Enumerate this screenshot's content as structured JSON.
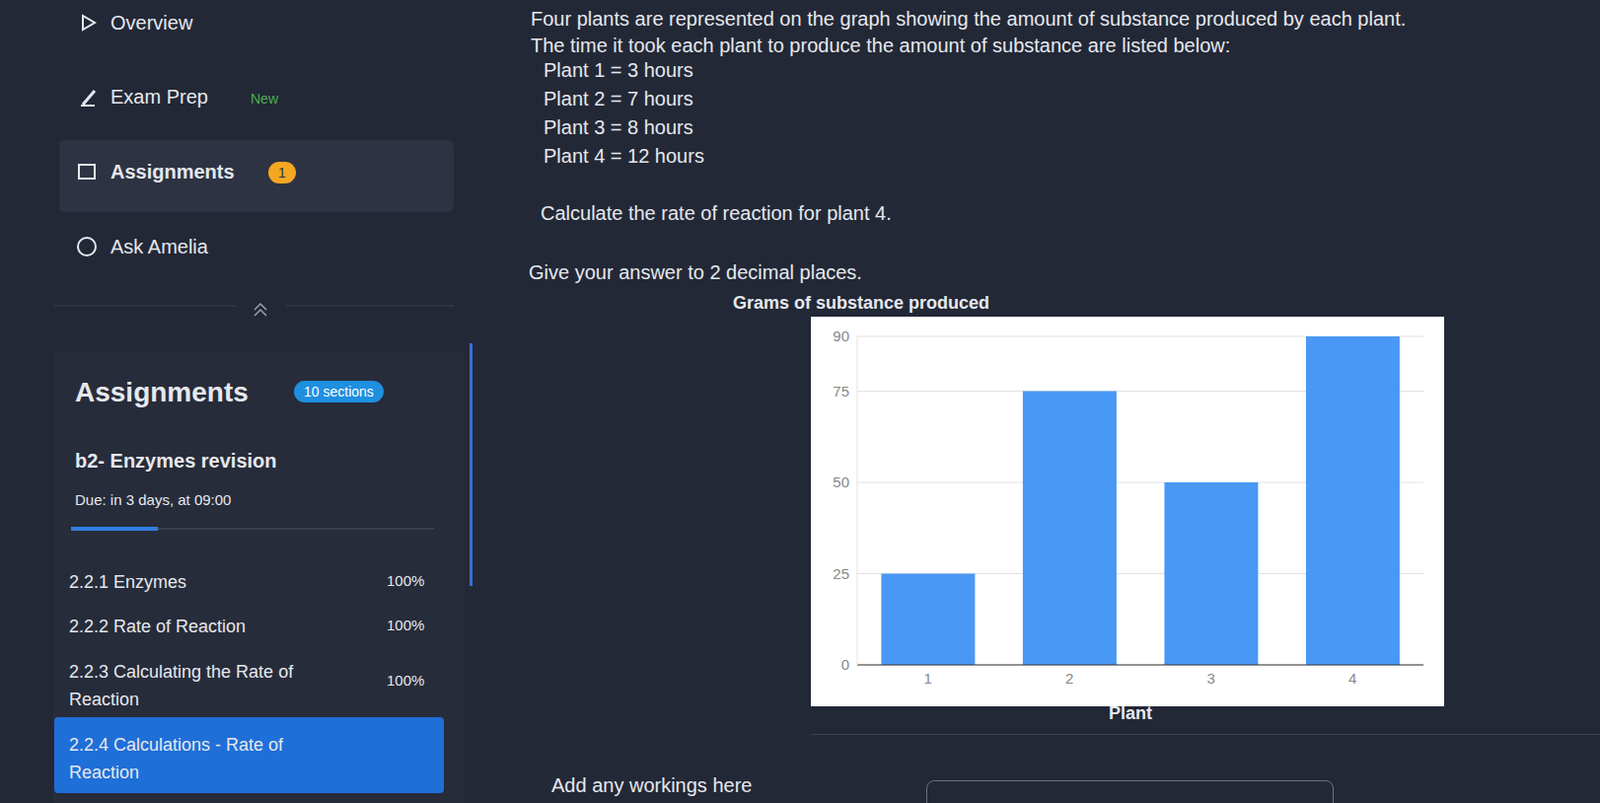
{
  "sidebar": {
    "nav": [
      {
        "label": "Overview"
      },
      {
        "label": "Exam Prep",
        "badge": "New"
      },
      {
        "label": "Assignments",
        "badge": "1"
      },
      {
        "label": "Ask Amelia"
      }
    ],
    "panel": {
      "title": "Assignments",
      "badge": "10 sections",
      "course": "b2- Enzymes revision",
      "due": "Due: in 3 days, at 09:00",
      "items": [
        {
          "label": "2.2.1 Enzymes",
          "progress": "100%"
        },
        {
          "label": "2.2.2 Rate of Reaction",
          "progress": "100%"
        },
        {
          "label": "2.2.3 Calculating the Rate of Reaction",
          "progress": "100%"
        },
        {
          "label": "2.2.4 Calculations - Rate of Reaction"
        }
      ]
    }
  },
  "question": {
    "intro": [
      "Four plants are represented on the graph showing the amount of substance produced by each plant.",
      "The time it took each plant to produce the amount of substance are listed below:"
    ],
    "times": [
      "Plant 1 = 3 hours",
      "Plant 2 = 7 hours",
      "Plant 3 = 8 hours",
      "Plant 4 = 12 hours"
    ],
    "task": "Calculate the rate of reaction for plant 4.",
    "instruction": "Give your answer to 2 decimal places.",
    "workings_label": "Add any workings here"
  },
  "chart_data": {
    "type": "bar",
    "title": "Grams of substance produced",
    "xlabel": "Plant",
    "categories": [
      "1",
      "2",
      "3",
      "4"
    ],
    "values": [
      25,
      75,
      50,
      90
    ],
    "color": "#4a98f5",
    "ylim": [
      0,
      90
    ],
    "yticks": [
      0,
      25,
      50,
      75,
      90
    ],
    "grid": true
  }
}
